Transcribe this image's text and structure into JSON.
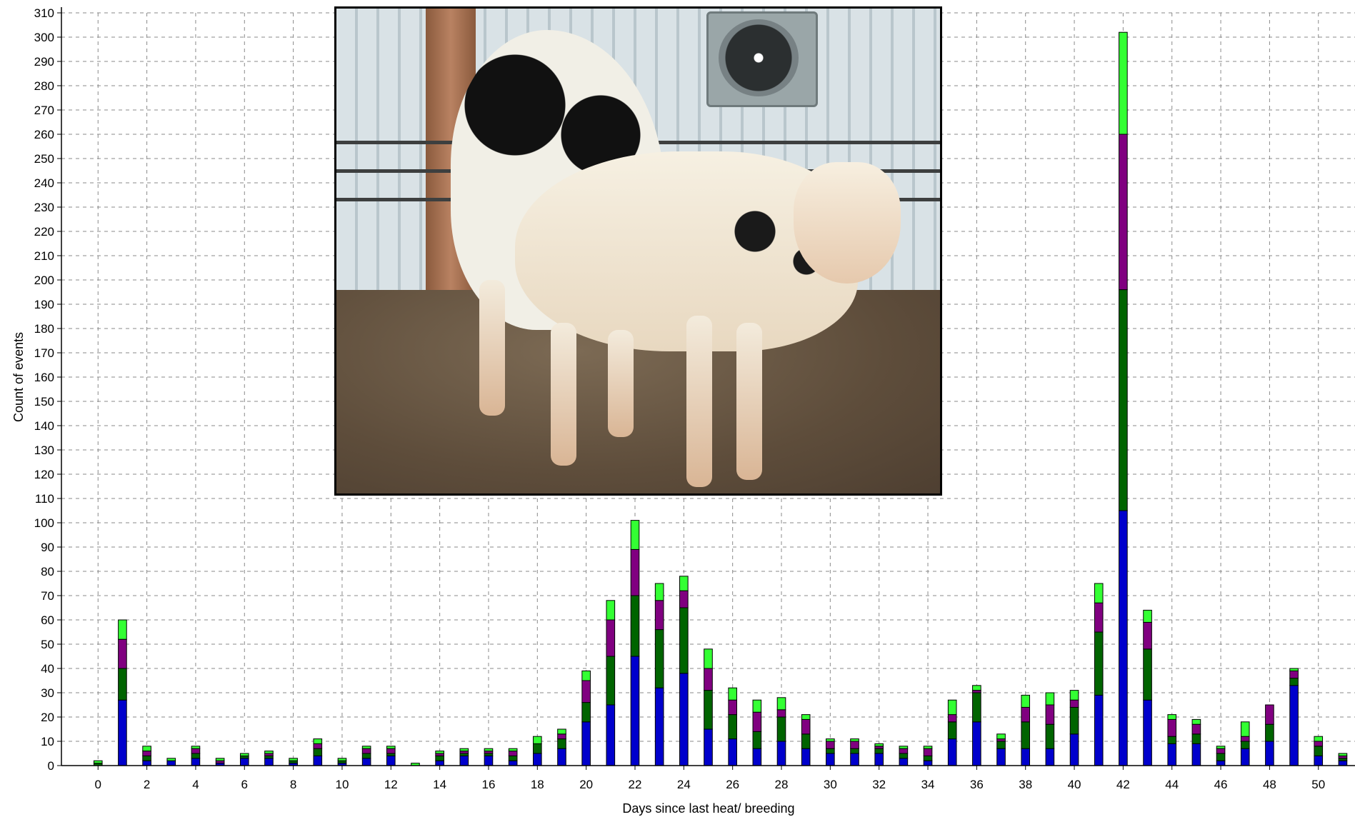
{
  "chart_data": {
    "type": "bar",
    "stacked": true,
    "title": "",
    "xlabel": "Days since last heat/ breeding",
    "ylabel": "Count of events",
    "ylim": [
      0,
      310
    ],
    "ytick_step": 10,
    "xlim": [
      -1.5,
      51.5
    ],
    "xtick_values": [
      0,
      2,
      4,
      6,
      8,
      10,
      12,
      14,
      16,
      18,
      20,
      22,
      24,
      26,
      28,
      30,
      32,
      34,
      36,
      38,
      40,
      42,
      44,
      46,
      48,
      50
    ],
    "grid": true,
    "legend": "none",
    "x": [
      0,
      1,
      2,
      3,
      4,
      5,
      6,
      7,
      8,
      9,
      10,
      11,
      12,
      13,
      14,
      15,
      16,
      17,
      18,
      19,
      20,
      21,
      22,
      23,
      24,
      25,
      26,
      27,
      28,
      29,
      30,
      31,
      32,
      33,
      34,
      35,
      36,
      37,
      38,
      39,
      40,
      41,
      42,
      43,
      44,
      45,
      46,
      47,
      48,
      49,
      50,
      51
    ],
    "series": [
      {
        "color": "#0000cc",
        "values": [
          0,
          27,
          2,
          2,
          3,
          1,
          3,
          3,
          1,
          4,
          1,
          3,
          4,
          0,
          2,
          4,
          4,
          2,
          5,
          7,
          18,
          25,
          45,
          32,
          38,
          15,
          11,
          7,
          10,
          7,
          5,
          5,
          5,
          3,
          2,
          11,
          18,
          7,
          7,
          7,
          13,
          29,
          105,
          27,
          9,
          9,
          2,
          7,
          10,
          33,
          4,
          2
        ]
      },
      {
        "color": "#006400",
        "values": [
          1,
          13,
          2,
          0,
          2,
          0,
          1,
          1,
          1,
          3,
          1,
          2,
          1,
          0,
          2,
          1,
          1,
          2,
          4,
          4,
          8,
          20,
          25,
          24,
          27,
          16,
          10,
          7,
          10,
          6,
          2,
          2,
          2,
          2,
          2,
          7,
          12,
          3,
          11,
          10,
          11,
          26,
          91,
          21,
          3,
          4,
          3,
          3,
          7,
          3,
          4,
          1
        ]
      },
      {
        "color": "#800080",
        "values": [
          0,
          12,
          2,
          0,
          2,
          1,
          0,
          1,
          0,
          2,
          0,
          2,
          2,
          0,
          1,
          1,
          1,
          2,
          0,
          2,
          9,
          15,
          19,
          12,
          7,
          9,
          6,
          8,
          3,
          6,
          3,
          3,
          1,
          2,
          3,
          3,
          1,
          1,
          6,
          8,
          3,
          12,
          64,
          11,
          7,
          4,
          2,
          2,
          8,
          3,
          2,
          1
        ]
      },
      {
        "color": "#33ff33",
        "values": [
          1,
          8,
          2,
          1,
          1,
          1,
          1,
          1,
          1,
          2,
          1,
          1,
          1,
          1,
          1,
          1,
          1,
          1,
          3,
          2,
          4,
          8,
          12,
          7,
          6,
          8,
          5,
          5,
          5,
          2,
          1,
          1,
          1,
          1,
          1,
          6,
          2,
          2,
          5,
          5,
          4,
          8,
          42,
          5,
          2,
          2,
          1,
          6,
          0,
          1,
          2,
          1
        ]
      }
    ]
  }
}
